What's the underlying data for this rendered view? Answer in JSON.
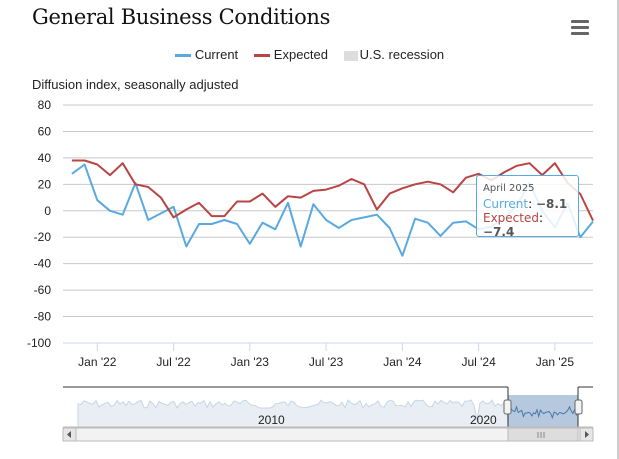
{
  "title": "General Business Conditions",
  "menu_icon": "hamburger-menu-icon",
  "legend": [
    {
      "label": "Current",
      "color": "#5aa9e0"
    },
    {
      "label": "Expected",
      "color": "#b94444"
    },
    {
      "label": "U.S. recession",
      "color": "#dddddd"
    }
  ],
  "tooltip": {
    "date": "April 2025",
    "current_label": "Current",
    "current_value": "−8.1",
    "expected_label": "Expected",
    "expected_value": "−7.4"
  },
  "navigator": {
    "labels": [
      "2010",
      "2020"
    ]
  },
  "chart_data": {
    "type": "line",
    "title": "General Business Conditions",
    "ylabel": "Diffusion index, seasonally adjusted",
    "ylim": [
      -100,
      80
    ],
    "yticks": [
      80,
      60,
      40,
      20,
      0,
      -20,
      -40,
      -60,
      -80,
      -100
    ],
    "x_start": "Nov 2021",
    "xlim_months": [
      -0.7,
      41
    ],
    "xticks": [
      {
        "label": "Jan '22",
        "i": 2
      },
      {
        "label": "Jul '22",
        "i": 8
      },
      {
        "label": "Jan '23",
        "i": 14
      },
      {
        "label": "Jul '23",
        "i": 20
      },
      {
        "label": "Jan '24",
        "i": 26
      },
      {
        "label": "Jul '24",
        "i": 32
      },
      {
        "label": "Jan '25",
        "i": 38
      }
    ],
    "grid": true,
    "legend_position": "top-center",
    "series": [
      {
        "name": "Current",
        "color": "#5aa9e0",
        "values": [
          28,
          35,
          8,
          0,
          -3,
          21,
          -7,
          -2,
          3,
          -27,
          -10,
          -10,
          -7,
          -10,
          -25,
          -9,
          -14,
          6,
          -27,
          5,
          -7,
          -13,
          -7,
          -5,
          -3,
          -13,
          -34,
          -6,
          -9,
          -19,
          -9,
          -8,
          -14,
          -12,
          -6,
          4,
          21,
          0,
          -12.6,
          5.7,
          -20,
          -8.1
        ]
      },
      {
        "name": "Expected",
        "color": "#b94444",
        "values": [
          38,
          38,
          35,
          27,
          36,
          20,
          18,
          10,
          -5,
          1,
          6,
          -4,
          -4,
          7,
          7,
          13,
          3,
          11,
          10,
          15,
          16,
          19,
          24,
          20,
          1,
          13,
          17,
          20,
          22,
          20,
          14,
          25,
          28,
          23,
          29,
          34,
          36,
          27,
          36,
          21,
          12.7,
          -7.4
        ]
      }
    ]
  }
}
